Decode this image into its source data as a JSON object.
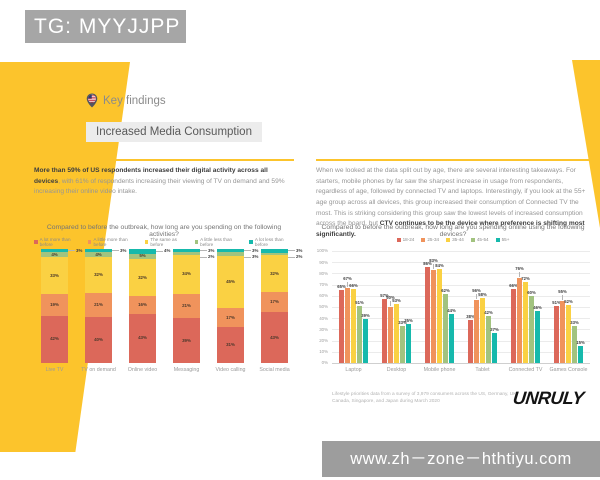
{
  "overlay": {
    "tag": "TG: MYYJJPP",
    "watermark": "www.zh－zone－hthtiyu.com"
  },
  "header": {
    "section_label": "Key findings",
    "subsection_label": "Increased Media Consumption"
  },
  "left_panel": {
    "intro_bold": "More than 59% of US respondents increased their digital activity across all devices",
    "intro_rest": ", with 61% of respondents increasing their viewing of TV on demand and 59% increasing their online video intake."
  },
  "right_panel": {
    "body_text": "When we looked at the data split out by age, there are several interesting takeaways. For starters, mobile phones by far saw the sharpest increase in usage from respondents, regardless of age, followed by connected TV and laptops. Interestingly, if you look at the 55+ age group across all devices, this group increased their consumption of Connected TV the most. This is striking considering this group saw the lowest levels of increased consumption across the board, but ",
    "body_bold": "CTV continues to be the device where preference is shifting most significantly."
  },
  "footnote": "Lifestyle priorities data from a survey of 3,979 consumers across the US, Germany, UK, Canada, Singapore, and Japan during March 2020",
  "logo_text": "UNRULY",
  "colors": {
    "accent_yellow": "#FCC42C",
    "overlay_gray": "#A6A6A6",
    "watermark_gray": "#9D9D9D",
    "series_red": "#DC685A",
    "series_orange": "#F0935C",
    "series_yellow": "#FAD143",
    "series_green": "#A2C37F",
    "series_teal": "#16B9AC"
  },
  "chart_data": [
    {
      "type": "bar",
      "variant": "stacked-100",
      "title": "Compared to before the outbreak, how long are you spending on the following activities?",
      "categories": [
        "Live TV",
        "TV on demand",
        "Online video",
        "Messaging",
        "Video calling",
        "Social media"
      ],
      "series": [
        {
          "name": "A lot more than before",
          "color": "#DC685A",
          "values": [
            42,
            40,
            43,
            39,
            31,
            43
          ]
        },
        {
          "name": "A little more than before",
          "color": "#F0935C",
          "values": [
            19,
            21,
            16,
            21,
            17,
            17
          ]
        },
        {
          "name": "The same as before",
          "color": "#FAD143",
          "values": [
            33,
            32,
            32,
            34,
            45,
            32
          ]
        },
        {
          "name": "A little less than before",
          "color": "#A2C37F",
          "values": [
            4,
            4,
            5,
            2,
            3,
            2
          ]
        },
        {
          "name": "A lot less than before",
          "color": "#16B9AC",
          "values": [
            3,
            3,
            4,
            3,
            3,
            3
          ]
        }
      ],
      "ylim": [
        0,
        100
      ],
      "grid": false,
      "legend_position": "top"
    },
    {
      "type": "bar",
      "variant": "grouped",
      "title": "Compared to before the outbreak, how long are you spending online using the following devices?",
      "categories": [
        "Laptop",
        "Desktop",
        "Mobile phone",
        "Tablet",
        "Connected TV",
        "Games Console"
      ],
      "series": [
        {
          "name": "18-24",
          "color": "#DC685A",
          "values": [
            65,
            57,
            86,
            38,
            66,
            51
          ]
        },
        {
          "name": "25-34",
          "color": "#F0935C",
          "values": [
            67,
            50,
            83,
            56,
            76,
            55
          ]
        },
        {
          "name": "35-44",
          "color": "#FAD143",
          "values": [
            66,
            53,
            84,
            58,
            72,
            52
          ]
        },
        {
          "name": "45-54",
          "color": "#A2C37F",
          "values": [
            51,
            33,
            62,
            42,
            60,
            33
          ]
        },
        {
          "name": "55+",
          "color": "#16B9AC",
          "values": [
            39,
            35,
            44,
            27,
            46,
            15
          ]
        }
      ],
      "ylim": [
        0,
        100
      ],
      "ytick_step": 10,
      "grid": true,
      "legend_position": "top"
    }
  ]
}
